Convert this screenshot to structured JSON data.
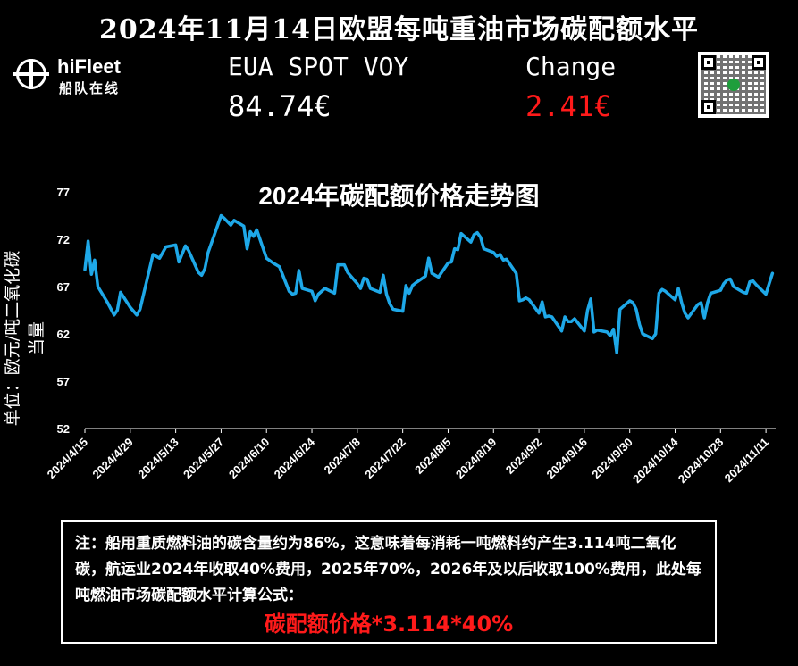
{
  "page_title": "2024年11月14日欧盟每吨重油市场碳配额水平",
  "logo": {
    "name": "hiFleet",
    "subtitle": "船队在线"
  },
  "ticker": {
    "label": "EUA SPOT VOY",
    "price": "84.74€",
    "change_label": "Change",
    "change": "2.41€",
    "change_color": "#ff1a1a"
  },
  "chart_data": {
    "type": "line",
    "title": "2024年碳配额价格走势图",
    "ylabel": "单位：欧元/吨二氧化碳当量",
    "xlabel": "",
    "ylim": [
      52,
      77
    ],
    "yticks": [
      52,
      57,
      62,
      67,
      72,
      77
    ],
    "xticks": [
      "2024/4/15",
      "2024/4/29",
      "2024/5/13",
      "2024/5/27",
      "2024/6/10",
      "2024/6/24",
      "2024/7/8",
      "2024/7/22",
      "2024/8/5",
      "2024/8/19",
      "2024/9/2",
      "2024/9/16",
      "2024/9/30",
      "2024/10/14",
      "2024/10/28",
      "2024/11/11"
    ],
    "x_start": "2024/4/15",
    "x_end": "2024/11/14",
    "grid": false,
    "line_color": "#1ea8e8",
    "series": [
      {
        "name": "",
        "points": [
          [
            "2024/4/15",
            68.8
          ],
          [
            "2024/4/16",
            71.8
          ],
          [
            "2024/4/17",
            68.3
          ],
          [
            "2024/4/18",
            69.8
          ],
          [
            "2024/4/19",
            67.0
          ],
          [
            "2024/4/22",
            65.3
          ],
          [
            "2024/4/24",
            64.0
          ],
          [
            "2024/4/25",
            64.5
          ],
          [
            "2024/4/26",
            66.4
          ],
          [
            "2024/4/29",
            64.8
          ],
          [
            "2024/5/1",
            64.0
          ],
          [
            "2024/5/2",
            64.6
          ],
          [
            "2024/5/6",
            70.4
          ],
          [
            "2024/5/8",
            70.0
          ],
          [
            "2024/5/10",
            71.2
          ],
          [
            "2024/5/13",
            71.4
          ],
          [
            "2024/5/14",
            69.6
          ],
          [
            "2024/5/16",
            71.3
          ],
          [
            "2024/5/17",
            70.8
          ],
          [
            "2024/5/20",
            68.5
          ],
          [
            "2024/5/21",
            68.2
          ],
          [
            "2024/5/22",
            68.9
          ],
          [
            "2024/5/23",
            70.6
          ],
          [
            "2024/5/27",
            74.5
          ],
          [
            "2024/5/28",
            74.2
          ],
          [
            "2024/5/30",
            73.5
          ],
          [
            "2024/5/31",
            74.0
          ],
          [
            "2024/6/3",
            73.4
          ],
          [
            "2024/6/4",
            71.0
          ],
          [
            "2024/6/5",
            72.8
          ],
          [
            "2024/6/6",
            72.3
          ],
          [
            "2024/6/7",
            73.0
          ],
          [
            "2024/6/10",
            70.0
          ],
          [
            "2024/6/12",
            69.5
          ],
          [
            "2024/6/13",
            69.3
          ],
          [
            "2024/6/14",
            69.1
          ],
          [
            "2024/6/17",
            66.5
          ],
          [
            "2024/6/18",
            66.2
          ],
          [
            "2024/6/19",
            66.3
          ],
          [
            "2024/6/20",
            68.7
          ],
          [
            "2024/6/21",
            66.8
          ],
          [
            "2024/6/24",
            66.5
          ],
          [
            "2024/6/25",
            65.5
          ],
          [
            "2024/6/26",
            66.2
          ],
          [
            "2024/6/28",
            66.8
          ],
          [
            "2024/7/1",
            66.3
          ],
          [
            "2024/7/2",
            69.3
          ],
          [
            "2024/7/4",
            69.3
          ],
          [
            "2024/7/5",
            68.5
          ],
          [
            "2024/7/8",
            67.3
          ],
          [
            "2024/7/9",
            66.8
          ],
          [
            "2024/7/10",
            67.9
          ],
          [
            "2024/7/11",
            67.8
          ],
          [
            "2024/7/12",
            66.8
          ],
          [
            "2024/7/15",
            66.4
          ],
          [
            "2024/7/16",
            68.2
          ],
          [
            "2024/7/17",
            66.2
          ],
          [
            "2024/7/18",
            65.2
          ],
          [
            "2024/7/19",
            64.6
          ],
          [
            "2024/7/22",
            64.4
          ],
          [
            "2024/7/23",
            67.1
          ],
          [
            "2024/7/24",
            66.3
          ],
          [
            "2024/7/25",
            67.1
          ],
          [
            "2024/7/26",
            67.4
          ],
          [
            "2024/7/29",
            68.1
          ],
          [
            "2024/7/30",
            70.0
          ],
          [
            "2024/7/31",
            68.4
          ],
          [
            "2024/8/2",
            68.0
          ],
          [
            "2024/8/5",
            69.5
          ],
          [
            "2024/8/6",
            69.6
          ],
          [
            "2024/8/7",
            71.0
          ],
          [
            "2024/8/8",
            70.9
          ],
          [
            "2024/8/9",
            72.6
          ],
          [
            "2024/8/12",
            71.7
          ],
          [
            "2024/8/13",
            72.5
          ],
          [
            "2024/8/14",
            72.7
          ],
          [
            "2024/8/15",
            72.2
          ],
          [
            "2024/8/16",
            71.0
          ],
          [
            "2024/8/19",
            70.6
          ],
          [
            "2024/8/20",
            70.2
          ],
          [
            "2024/8/21",
            70.4
          ],
          [
            "2024/8/22",
            69.8
          ],
          [
            "2024/8/23",
            69.9
          ],
          [
            "2024/8/26",
            68.4
          ],
          [
            "2024/8/27",
            65.5
          ],
          [
            "2024/8/28",
            65.6
          ],
          [
            "2024/8/29",
            65.8
          ],
          [
            "2024/8/30",
            65.6
          ],
          [
            "2024/9/2",
            64.2
          ],
          [
            "2024/9/3",
            65.4
          ],
          [
            "2024/9/4",
            63.8
          ],
          [
            "2024/9/5",
            63.9
          ],
          [
            "2024/9/6",
            63.8
          ],
          [
            "2024/9/9",
            62.3
          ],
          [
            "2024/9/10",
            63.8
          ],
          [
            "2024/9/11",
            63.3
          ],
          [
            "2024/9/12",
            63.3
          ],
          [
            "2024/9/13",
            63.6
          ],
          [
            "2024/9/16",
            62.3
          ],
          [
            "2024/9/17",
            64.5
          ],
          [
            "2024/9/18",
            65.7
          ],
          [
            "2024/9/19",
            62.2
          ],
          [
            "2024/9/20",
            62.4
          ],
          [
            "2024/9/23",
            62.2
          ],
          [
            "2024/9/24",
            61.8
          ],
          [
            "2024/9/25",
            62.5
          ],
          [
            "2024/9/26",
            60.0
          ],
          [
            "2024/9/27",
            64.6
          ],
          [
            "2024/9/30",
            65.5
          ],
          [
            "2024/10/1",
            65.3
          ],
          [
            "2024/10/2",
            64.6
          ],
          [
            "2024/10/3",
            63.0
          ],
          [
            "2024/10/4",
            62.0
          ],
          [
            "2024/10/7",
            61.5
          ],
          [
            "2024/10/8",
            62.0
          ],
          [
            "2024/10/9",
            66.3
          ],
          [
            "2024/10/10",
            66.7
          ],
          [
            "2024/10/11",
            66.5
          ],
          [
            "2024/10/14",
            65.6
          ],
          [
            "2024/10/15",
            66.8
          ],
          [
            "2024/10/16",
            65.3
          ],
          [
            "2024/10/17",
            64.2
          ],
          [
            "2024/10/18",
            63.7
          ],
          [
            "2024/10/21",
            65.1
          ],
          [
            "2024/10/22",
            65.3
          ],
          [
            "2024/10/23",
            63.7
          ],
          [
            "2024/10/24",
            65.3
          ],
          [
            "2024/10/25",
            66.3
          ],
          [
            "2024/10/28",
            66.6
          ],
          [
            "2024/10/29",
            67.3
          ],
          [
            "2024/10/30",
            67.7
          ],
          [
            "2024/10/31",
            67.8
          ],
          [
            "2024/11/1",
            67.0
          ],
          [
            "2024/11/4",
            66.4
          ],
          [
            "2024/11/5",
            66.3
          ],
          [
            "2024/11/6",
            67.5
          ],
          [
            "2024/11/7",
            67.6
          ],
          [
            "2024/11/8",
            67.2
          ],
          [
            "2024/11/11",
            66.2
          ],
          [
            "2024/11/12",
            67.3
          ],
          [
            "2024/11/13",
            68.4
          ]
        ]
      }
    ]
  },
  "note": {
    "text": "注：船用重质燃料油的碳含量约为86%，这意味着每消耗一吨燃料约产生3.114吨二氧化碳，航运业2024年收取40%费用，2025年70%，2026年及以后收取100%费用，此处每吨燃油市场碳配额水平计算公式：",
    "formula": "碳配额价格*3.114*40%",
    "formula_color": "#ff1a1a"
  }
}
